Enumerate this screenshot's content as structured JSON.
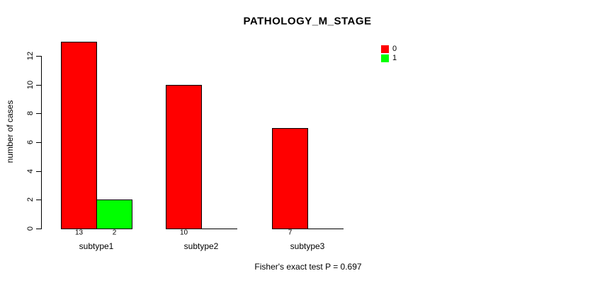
{
  "chart_data": {
    "type": "bar",
    "title": "PATHOLOGY_M_STAGE",
    "xlabel": "",
    "ylabel": "number of cases",
    "categories": [
      "subtype1",
      "subtype2",
      "subtype3"
    ],
    "series": [
      {
        "name": "0",
        "color": "#ff0000",
        "values": [
          13,
          10,
          7
        ]
      },
      {
        "name": "1",
        "color": "#00ff00",
        "values": [
          2,
          0,
          0
        ]
      }
    ],
    "bar_value_labels": [
      [
        13,
        2
      ],
      [
        10,
        null
      ],
      [
        7,
        null
      ]
    ],
    "yticks": [
      0,
      2,
      4,
      6,
      8,
      10,
      12
    ],
    "ylim": [
      0,
      13
    ],
    "grid": false,
    "legend": {
      "position": "top-right",
      "entries": [
        {
          "label": "0",
          "color": "#ff0000"
        },
        {
          "label": "1",
          "color": "#00ff00"
        }
      ]
    },
    "annotation": "Fisher's exact test P = 0.697"
  },
  "colors": {
    "bar_border": "#000000",
    "axis": "#000000",
    "text": "#000000",
    "background": "#ffffff"
  }
}
